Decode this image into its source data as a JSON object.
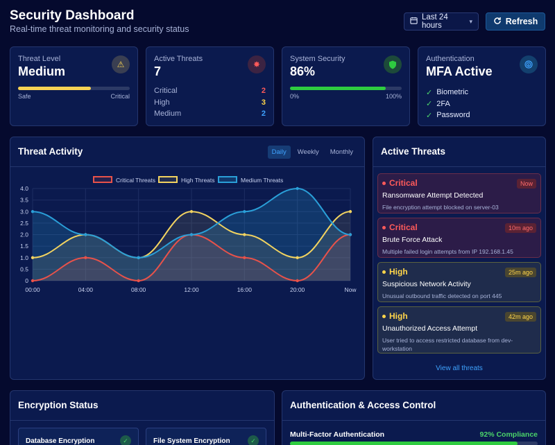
{
  "header": {
    "title": "Security Dashboard",
    "subtitle": "Real-time threat monitoring and security status",
    "range_label": "Last 24 hours",
    "refresh_label": "Refresh"
  },
  "stats": {
    "threat_level": {
      "label": "Threat Level",
      "value": "Medium",
      "progress": 0.65,
      "left": "Safe",
      "right": "Critical",
      "color": "#f7d254"
    },
    "active_threats": {
      "label": "Active Threats",
      "value": "7",
      "rows": [
        {
          "name": "Critical",
          "count": "2",
          "color": "#ff5a5a"
        },
        {
          "name": "High",
          "count": "3",
          "color": "#ffd54a"
        },
        {
          "name": "Medium",
          "count": "2",
          "color": "#3fa3ff"
        }
      ]
    },
    "system_security": {
      "label": "System Security",
      "value": "86%",
      "progress": 0.86,
      "left": "0%",
      "right": "100%",
      "color": "#2ecc40"
    },
    "authentication": {
      "label": "Authentication",
      "value": "MFA Active",
      "items": [
        "Biometric",
        "2FA",
        "Password"
      ]
    }
  },
  "threat_activity": {
    "title": "Threat Activity",
    "tabs": [
      "Daily",
      "Weekly",
      "Monthly"
    ],
    "active_tab": "Daily"
  },
  "chart_data": {
    "type": "line",
    "x": [
      "00:00",
      "04:00",
      "08:00",
      "12:00",
      "16:00",
      "20:00",
      "Now"
    ],
    "ylim": [
      0,
      4
    ],
    "yticks": [
      "0",
      "0.5",
      "1.0",
      "1.5",
      "2.0",
      "2.5",
      "3.0",
      "3.5",
      "4.0"
    ],
    "series": [
      {
        "name": "Critical Threats",
        "color": "#e8524a",
        "values": [
          0,
          1,
          0,
          2,
          1,
          0,
          2
        ]
      },
      {
        "name": "High Threats",
        "color": "#f2d360",
        "values": [
          1,
          2,
          1,
          3,
          2,
          1,
          3
        ]
      },
      {
        "name": "Medium Threats",
        "color": "#2a9fd8",
        "values": [
          3,
          2,
          1,
          2,
          3,
          4,
          2
        ]
      }
    ]
  },
  "active_threats_panel": {
    "title": "Active Threats",
    "alerts": [
      {
        "severity": "Critical",
        "time": "Now",
        "title": "Ransomware Attempt Detected",
        "desc": "File encryption attempt blocked on server-03"
      },
      {
        "severity": "Critical",
        "time": "10m ago",
        "title": "Brute Force Attack",
        "desc": "Multiple failed login attempts from IP 192.168.1.45"
      },
      {
        "severity": "High",
        "time": "25m ago",
        "title": "Suspicious Network Activity",
        "desc": "Unusual outbound traffic detected on port 445"
      },
      {
        "severity": "High",
        "time": "42m ago",
        "title": "Unauthorized Access Attempt",
        "desc": "User tried to access restricted database from dev-workstation"
      }
    ],
    "view_all": "View all threats"
  },
  "encryption": {
    "title": "Encryption Status",
    "items": [
      "Database Encryption",
      "File System Encryption"
    ]
  },
  "auth_access": {
    "title": "Authentication & Access Control",
    "mfa_label": "Multi-Factor Authentication",
    "mfa_value": "92% Compliance",
    "mfa_progress": 0.92
  }
}
